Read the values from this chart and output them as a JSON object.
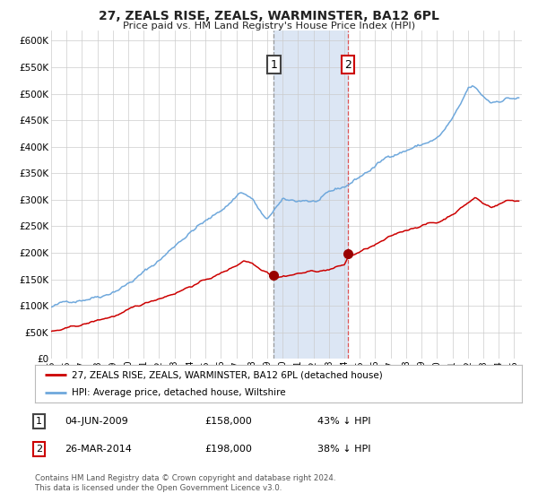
{
  "title": "27, ZEALS RISE, ZEALS, WARMINSTER, BA12 6PL",
  "subtitle": "Price paid vs. HM Land Registry's House Price Index (HPI)",
  "ylim": [
    0,
    620000
  ],
  "xlim_start": 1995.0,
  "xlim_end": 2025.5,
  "yticks": [
    0,
    50000,
    100000,
    150000,
    200000,
    250000,
    300000,
    350000,
    400000,
    450000,
    500000,
    550000,
    600000
  ],
  "ytick_labels": [
    "£0",
    "£50K",
    "£100K",
    "£150K",
    "£200K",
    "£250K",
    "£300K",
    "£350K",
    "£400K",
    "£450K",
    "£500K",
    "£550K",
    "£600K"
  ],
  "xtick_years": [
    1995,
    1996,
    1997,
    1998,
    1999,
    2000,
    2001,
    2002,
    2003,
    2004,
    2005,
    2006,
    2007,
    2008,
    2009,
    2010,
    2011,
    2012,
    2013,
    2014,
    2015,
    2016,
    2017,
    2018,
    2019,
    2020,
    2021,
    2022,
    2023,
    2024,
    2025
  ],
  "transaction1_date": 2009.42,
  "transaction1_price": 158000,
  "transaction1_label": "1",
  "transaction2_date": 2014.23,
  "transaction2_price": 198000,
  "transaction2_label": "2",
  "shaded_region_start": 2009.42,
  "shaded_region_end": 2014.23,
  "legend_entries": [
    "27, ZEALS RISE, ZEALS, WARMINSTER, BA12 6PL (detached house)",
    "HPI: Average price, detached house, Wiltshire"
  ],
  "table_rows": [
    {
      "num": "1",
      "date": "04-JUN-2009",
      "price": "£158,000",
      "pct": "43% ↓ HPI"
    },
    {
      "num": "2",
      "date": "26-MAR-2014",
      "price": "£198,000",
      "pct": "38% ↓ HPI"
    }
  ],
  "footer": "Contains HM Land Registry data © Crown copyright and database right 2024.\nThis data is licensed under the Open Government Licence v3.0.",
  "hpi_color": "#6fa8dc",
  "price_color": "#cc0000",
  "shaded_color": "#dce6f4",
  "marker_color": "#990000",
  "grid_color": "#cccccc",
  "background_color": "#ffffff",
  "vline1_color": "#aaaaaa",
  "vline2_color": "#e06060",
  "title_color": "#222222",
  "label1_edge": "#444444",
  "label2_edge": "#cc0000"
}
